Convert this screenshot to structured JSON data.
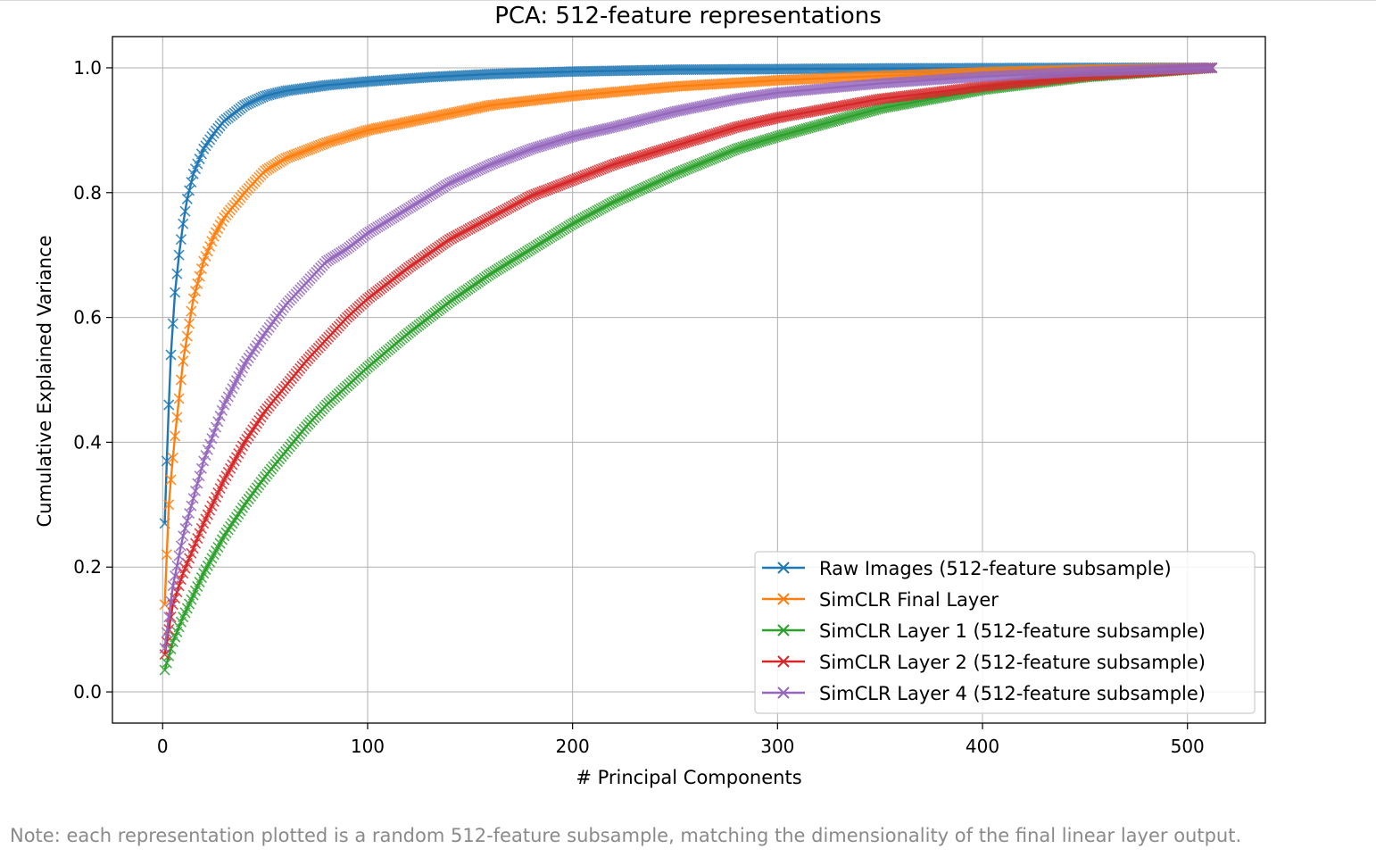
{
  "note": "Note: each representation plotted is a random 512-feature subsample, matching the dimensionality of the final linear layer output.",
  "chart_data": {
    "type": "line",
    "title": "PCA: 512-feature representations",
    "xlabel": "# Principal Components",
    "ylabel": "Cumulative Explained Variance",
    "xlim": [
      -24.5,
      538
    ],
    "ylim": [
      -0.05,
      1.05
    ],
    "xticks": [
      0,
      100,
      200,
      300,
      400,
      500
    ],
    "yticks": [
      0.0,
      0.2,
      0.4,
      0.6,
      0.8,
      1.0
    ],
    "xtick_labels": [
      "0",
      "100",
      "200",
      "300",
      "400",
      "500"
    ],
    "ytick_labels": [
      "0.0",
      "0.2",
      "0.4",
      "0.6",
      "0.8",
      "1.0"
    ],
    "grid": true,
    "legend_position": "lower-right",
    "marker": "x",
    "series": [
      {
        "name": "Raw Images (512-feature subsample)",
        "color": "#1f77b4",
        "x": [
          1,
          2,
          3,
          4,
          5,
          6,
          8,
          10,
          12,
          15,
          20,
          25,
          30,
          40,
          50,
          60,
          80,
          100,
          130,
          160,
          200,
          250,
          300,
          350,
          400,
          450,
          512
        ],
        "y": [
          0.27,
          0.37,
          0.46,
          0.54,
          0.59,
          0.64,
          0.7,
          0.75,
          0.79,
          0.83,
          0.87,
          0.895,
          0.915,
          0.94,
          0.955,
          0.963,
          0.972,
          0.978,
          0.985,
          0.99,
          0.994,
          0.997,
          0.998,
          0.999,
          0.9995,
          0.9998,
          1.0
        ]
      },
      {
        "name": "SimCLR Final Layer",
        "color": "#ff7f0e",
        "x": [
          1,
          2,
          3,
          4,
          6,
          8,
          10,
          12,
          15,
          20,
          25,
          30,
          40,
          50,
          60,
          80,
          100,
          130,
          160,
          200,
          250,
          300,
          350,
          400,
          450,
          512
        ],
        "y": [
          0.14,
          0.22,
          0.3,
          0.34,
          0.41,
          0.47,
          0.53,
          0.57,
          0.63,
          0.69,
          0.73,
          0.76,
          0.8,
          0.835,
          0.855,
          0.88,
          0.9,
          0.92,
          0.94,
          0.955,
          0.97,
          0.98,
          0.987,
          0.993,
          0.997,
          1.0
        ]
      },
      {
        "name": "SimCLR Layer 1 (512-feature subsample)",
        "color": "#2ca02c",
        "x": [
          1,
          5,
          10,
          20,
          30,
          40,
          50,
          60,
          70,
          80,
          90,
          100,
          120,
          140,
          160,
          180,
          200,
          220,
          250,
          280,
          300,
          350,
          400,
          450,
          512
        ],
        "y": [
          0.035,
          0.08,
          0.12,
          0.19,
          0.25,
          0.3,
          0.345,
          0.385,
          0.425,
          0.46,
          0.49,
          0.52,
          0.575,
          0.625,
          0.67,
          0.71,
          0.75,
          0.785,
          0.83,
          0.87,
          0.89,
          0.935,
          0.965,
          0.985,
          1.0
        ]
      },
      {
        "name": "SimCLR Layer 2 (512-feature subsample)",
        "color": "#d62728",
        "x": [
          1,
          5,
          10,
          20,
          30,
          40,
          50,
          60,
          70,
          80,
          90,
          100,
          120,
          140,
          160,
          180,
          200,
          220,
          250,
          280,
          300,
          350,
          400,
          450,
          512
        ],
        "y": [
          0.06,
          0.14,
          0.19,
          0.27,
          0.34,
          0.4,
          0.45,
          0.49,
          0.53,
          0.565,
          0.6,
          0.63,
          0.68,
          0.725,
          0.76,
          0.795,
          0.82,
          0.845,
          0.875,
          0.905,
          0.92,
          0.95,
          0.97,
          0.987,
          1.0
        ]
      },
      {
        "name": "SimCLR Layer 4 (512-feature subsample)",
        "color": "#9467bd",
        "x": [
          1,
          5,
          10,
          20,
          30,
          40,
          50,
          60,
          70,
          80,
          90,
          100,
          120,
          140,
          160,
          180,
          200,
          220,
          250,
          280,
          300,
          350,
          400,
          450,
          512
        ],
        "y": [
          0.07,
          0.17,
          0.25,
          0.37,
          0.46,
          0.525,
          0.575,
          0.62,
          0.655,
          0.69,
          0.71,
          0.735,
          0.775,
          0.815,
          0.845,
          0.87,
          0.89,
          0.905,
          0.93,
          0.95,
          0.96,
          0.975,
          0.986,
          0.994,
          1.0
        ]
      }
    ]
  }
}
